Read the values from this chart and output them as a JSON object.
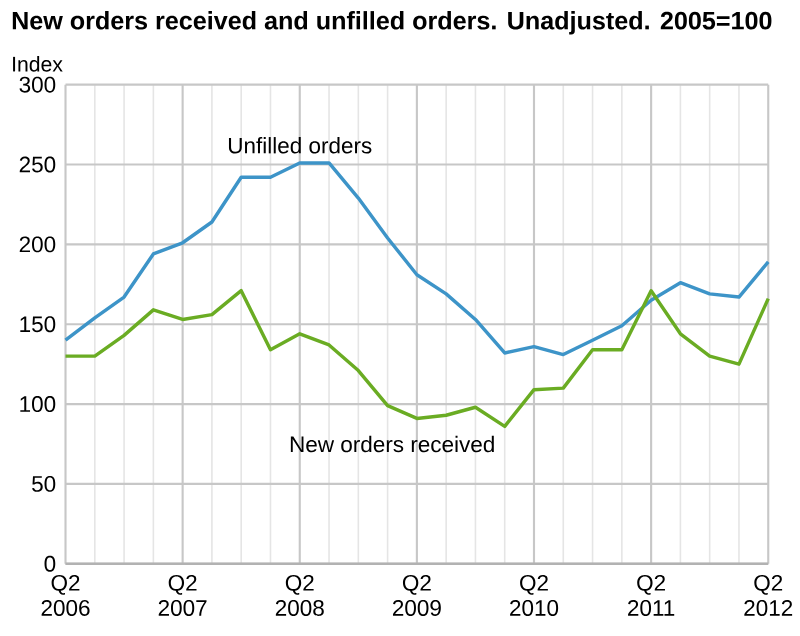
{
  "chart_data": {
    "type": "line",
    "title": "New orders received and unfilled orders. Unadjusted. 2005=100",
    "ylabel": "Index",
    "categories": [
      "Q2 2006",
      null,
      null,
      null,
      "Q2 2007",
      null,
      null,
      null,
      "Q2 2008",
      null,
      null,
      null,
      "Q2 2009",
      null,
      null,
      null,
      "Q2 2010",
      null,
      null,
      null,
      "Q2 2011",
      null,
      null,
      null,
      "Q2 2012"
    ],
    "series": [
      {
        "name": "Unfilled orders",
        "color": "#3d94c8",
        "values": [
          140,
          154,
          167,
          194,
          201,
          214,
          242,
          242,
          251,
          251,
          229,
          204,
          181,
          169,
          153,
          132,
          136,
          131,
          140,
          149,
          165,
          176,
          169,
          167,
          189
        ]
      },
      {
        "name": "New orders received",
        "color": "#6aac23",
        "values": [
          130,
          130,
          143,
          159,
          153,
          156,
          171,
          134,
          144,
          137,
          121,
          99,
          91,
          93,
          98,
          86,
          109,
          110,
          134,
          134,
          171,
          144,
          130,
          125,
          166
        ]
      }
    ],
    "ylim": [
      0,
      300
    ],
    "yticks": [
      0,
      50,
      100,
      150,
      200,
      250,
      300
    ],
    "grid": true
  }
}
